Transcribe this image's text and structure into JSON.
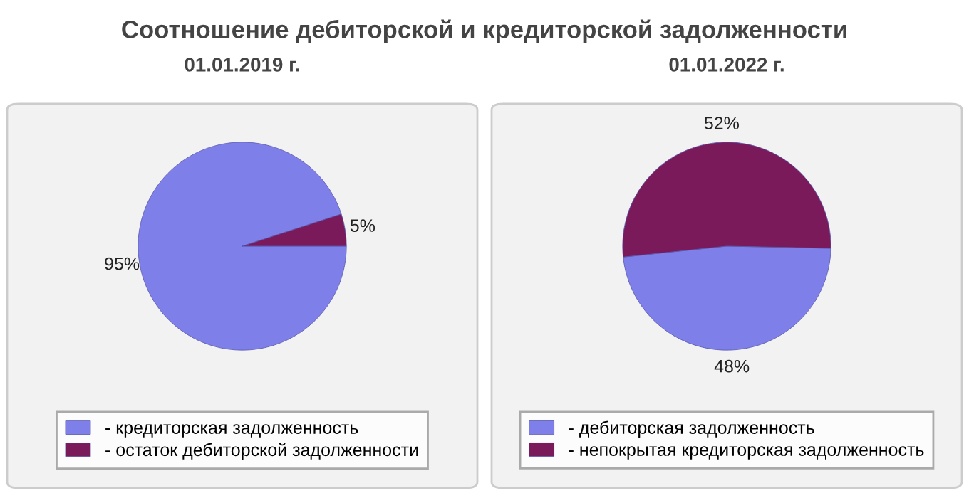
{
  "chart_data": [
    {
      "type": "pie",
      "title": "01.01.2019 г.",
      "annotations": [
        "Соотношение дебиторской и кредиторской задолженности"
      ],
      "categories": [
        "- кредиторская задолженность",
        "- остаток дебиторской задолженности"
      ],
      "values": [
        95,
        5
      ],
      "value_labels": [
        "95%",
        "5%"
      ],
      "colors": [
        "#7f7fea",
        "#7a1a5a"
      ],
      "legend": "bottom"
    },
    {
      "type": "pie",
      "title": "01.01.2022 г.",
      "categories": [
        "- дебиторская задолженность",
        "- непокрытая кредиторская задолженность"
      ],
      "values": [
        48,
        52
      ],
      "value_labels": [
        "48%",
        "52%"
      ],
      "colors": [
        "#7f7fea",
        "#7a1a5a"
      ],
      "legend": "bottom"
    }
  ]
}
